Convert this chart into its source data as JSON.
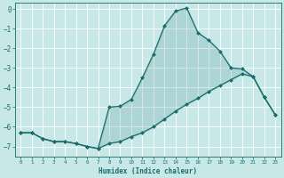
{
  "xlabel": "Humidex (Indice chaleur)",
  "ylabel": "",
  "bg_color": "#c8e8e8",
  "grid_color": "#ffffff",
  "line_color": "#1a6b6b",
  "marker_color": "#1a6b6b",
  "xlim": [
    -0.5,
    23.5
  ],
  "ylim": [
    -7.5,
    0.3
  ],
  "yticks": [
    0,
    -1,
    -2,
    -3,
    -4,
    -5,
    -6,
    -7
  ],
  "xticks": [
    0,
    1,
    2,
    3,
    4,
    5,
    6,
    7,
    8,
    9,
    10,
    11,
    12,
    13,
    14,
    15,
    16,
    17,
    18,
    19,
    20,
    21,
    22,
    23
  ],
  "upper_x": [
    0,
    1,
    2,
    3,
    4,
    5,
    6,
    7,
    8,
    9,
    10,
    11,
    12,
    13,
    14,
    15,
    16,
    17,
    18,
    19,
    20,
    21,
    22,
    23
  ],
  "upper_y": [
    -6.3,
    -6.3,
    -6.6,
    -6.75,
    -6.75,
    -6.85,
    -7.0,
    -7.1,
    -5.0,
    -4.95,
    -4.6,
    -3.5,
    -2.3,
    -0.85,
    -0.1,
    0.05,
    -1.2,
    -1.6,
    -2.15,
    -3.0,
    -3.05,
    -3.45,
    -4.5,
    -5.4
  ],
  "lower_x": [
    0,
    1,
    2,
    3,
    4,
    5,
    6,
    7,
    8,
    9,
    10,
    11,
    12,
    13,
    14,
    15,
    16,
    17,
    18,
    19,
    20,
    21,
    22,
    23
  ],
  "lower_y": [
    -6.3,
    -6.3,
    -6.6,
    -6.75,
    -6.75,
    -6.85,
    -7.0,
    -7.1,
    -6.85,
    -6.75,
    -6.5,
    -6.3,
    -6.0,
    -5.6,
    -5.2,
    -4.85,
    -4.55,
    -4.2,
    -3.9,
    -3.6,
    -3.3,
    -3.45,
    -4.5,
    -5.4
  ]
}
